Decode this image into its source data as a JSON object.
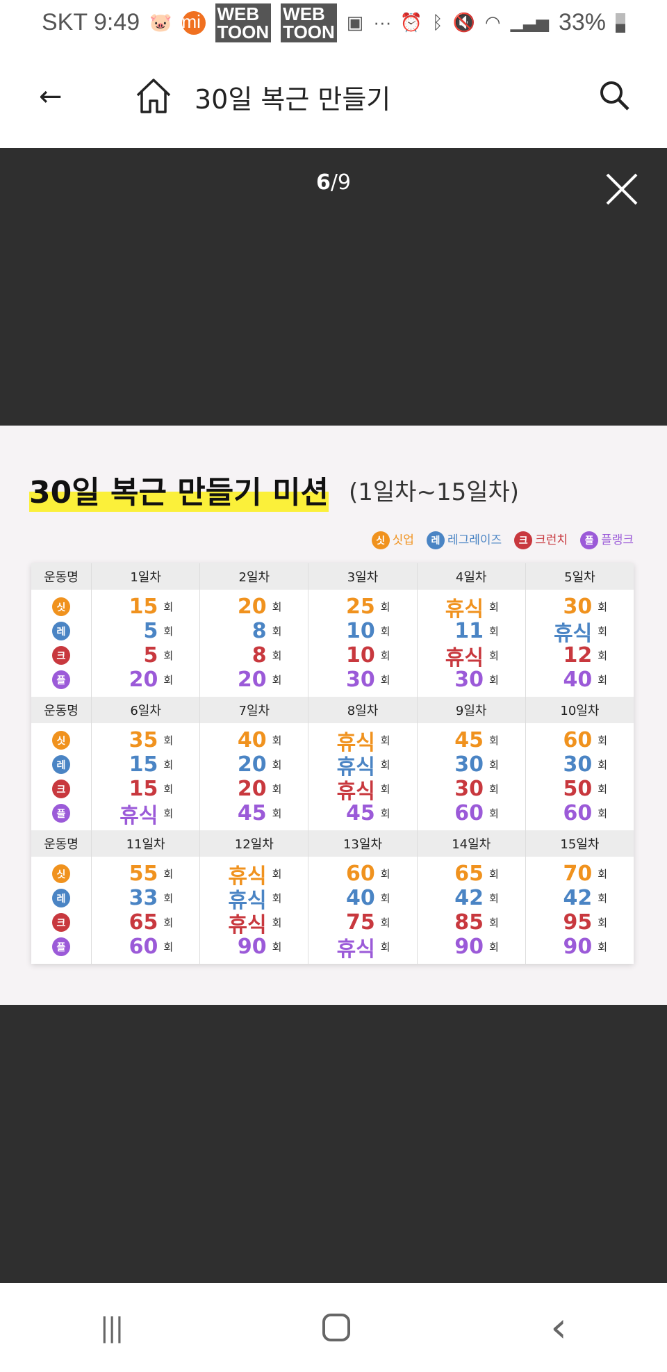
{
  "status": {
    "carrier_time": "SKT 9:49",
    "battery": "33%",
    "more": "···"
  },
  "header": {
    "title": "30일 복근 만들기"
  },
  "viewer": {
    "current": "6",
    "total": "/9"
  },
  "mission": {
    "title": "30일 복근 만들기 미션",
    "subtitle": "(1일차~15일차)",
    "legend": [
      {
        "badge": "싯",
        "label": "싯업",
        "color": "#f0921e"
      },
      {
        "badge": "레",
        "label": "레그레이즈",
        "color": "#4a84c4"
      },
      {
        "badge": "크",
        "label": "크런치",
        "color": "#c8383e"
      },
      {
        "badge": "플",
        "label": "플랭크",
        "color": "#9b5ad8"
      }
    ],
    "row_header": "운동명",
    "unit": "회",
    "blocks": [
      {
        "days": [
          "1일차",
          "2일차",
          "3일차",
          "4일차",
          "5일차"
        ],
        "values": [
          [
            "15",
            "5",
            "5",
            "20"
          ],
          [
            "20",
            "8",
            "8",
            "20"
          ],
          [
            "25",
            "10",
            "10",
            "30"
          ],
          [
            "휴식",
            "11",
            "휴식",
            "30"
          ],
          [
            "30",
            "휴식",
            "12",
            "40"
          ]
        ]
      },
      {
        "days": [
          "6일차",
          "7일차",
          "8일차",
          "9일차",
          "10일차"
        ],
        "values": [
          [
            "35",
            "15",
            "15",
            "휴식"
          ],
          [
            "40",
            "20",
            "20",
            "45"
          ],
          [
            "휴식",
            "휴식",
            "휴식",
            "45"
          ],
          [
            "45",
            "30",
            "30",
            "60"
          ],
          [
            "60",
            "30",
            "50",
            "60"
          ]
        ]
      },
      {
        "days": [
          "11일차",
          "12일차",
          "13일차",
          "14일차",
          "15일차"
        ],
        "values": [
          [
            "55",
            "33",
            "65",
            "60"
          ],
          [
            "휴식",
            "휴식",
            "휴식",
            "90"
          ],
          [
            "60",
            "40",
            "75",
            "휴식"
          ],
          [
            "65",
            "42",
            "85",
            "90"
          ],
          [
            "70",
            "42",
            "95",
            "90"
          ]
        ]
      }
    ]
  },
  "navbar": {
    "recents": "|||",
    "home": "○",
    "back": "‹"
  }
}
